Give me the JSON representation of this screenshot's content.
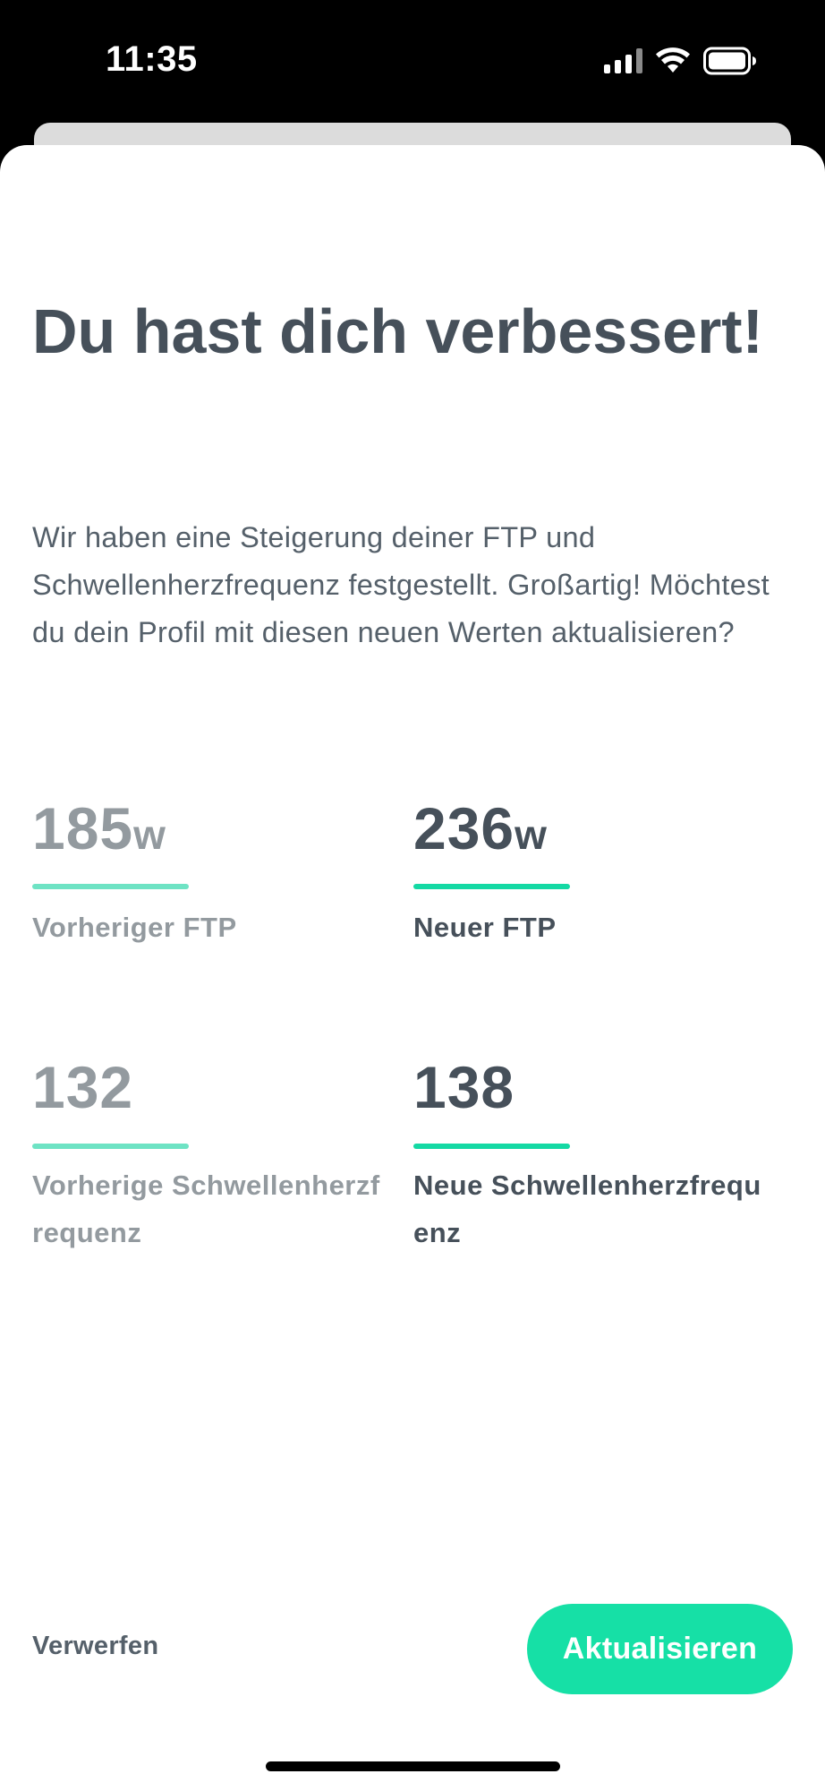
{
  "status_bar": {
    "time": "11:35",
    "icons": [
      "cellular-signal-icon",
      "wifi-icon",
      "battery-icon"
    ]
  },
  "dialog": {
    "title": "Du hast dich verbessert!",
    "description": "Wir haben eine Steigerung deiner FTP und Schwellenherzfrequenz festgestellt. Großartig! Möchtest du dein Profil mit diesen neuen Werten aktualisieren?",
    "stats": {
      "ftp_old": {
        "value": "185",
        "unit": "w",
        "label": "Vorheriger FTP"
      },
      "ftp_new": {
        "value": "236",
        "unit": "w",
        "label": "Neuer FTP"
      },
      "hr_old": {
        "value": "132",
        "label": "Vorherige Schwellenherzfrequenz"
      },
      "hr_new": {
        "value": "138",
        "label": "Neue Schwellenherzfrequenz"
      }
    },
    "discard_label": "Verwerfen",
    "update_label": "Aktualisieren"
  },
  "colors": {
    "accent": "#16e0a6",
    "bar_new": "#14d9a4",
    "bar_old": "#6ee3c4",
    "text_dark": "#46505a",
    "text_muted": "#939a9f"
  }
}
